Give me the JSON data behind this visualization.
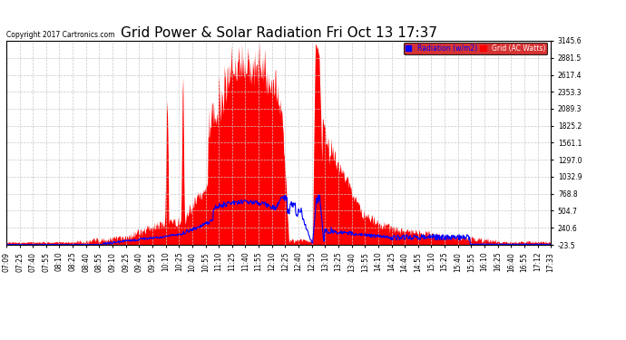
{
  "title": "Grid Power & Solar Radiation Fri Oct 13 17:37",
  "copyright": "Copyright 2017 Cartronics.com",
  "legend_labels": [
    "Radiation (w/m2)",
    "Grid (AC Watts)"
  ],
  "ylabel_right_ticks": [
    -23.5,
    240.6,
    504.7,
    768.8,
    1032.9,
    1297.0,
    1561.1,
    1825.2,
    2089.3,
    2353.3,
    2617.4,
    2881.5,
    3145.6
  ],
  "ylim": [
    -23.5,
    3145.6
  ],
  "background_color": "#ffffff",
  "plot_bg_color": "#ffffff",
  "grid_color": "#c8c8c8",
  "title_fontsize": 11,
  "tick_fontsize": 5.5,
  "x_tick_labels": [
    "07:09",
    "07:25",
    "07:40",
    "07:55",
    "08:10",
    "08:25",
    "08:40",
    "08:55",
    "09:10",
    "09:25",
    "09:40",
    "09:55",
    "10:10",
    "10:25",
    "10:40",
    "10:55",
    "11:10",
    "11:25",
    "11:40",
    "11:55",
    "12:10",
    "12:25",
    "12:40",
    "12:55",
    "13:10",
    "13:25",
    "13:40",
    "13:55",
    "14:10",
    "14:25",
    "14:40",
    "14:55",
    "15:10",
    "15:25",
    "15:40",
    "15:55",
    "16:10",
    "16:25",
    "16:40",
    "16:55",
    "17:12",
    "17:33"
  ],
  "n_points": 1000,
  "hour_start": 7.15,
  "hour_end": 17.55
}
